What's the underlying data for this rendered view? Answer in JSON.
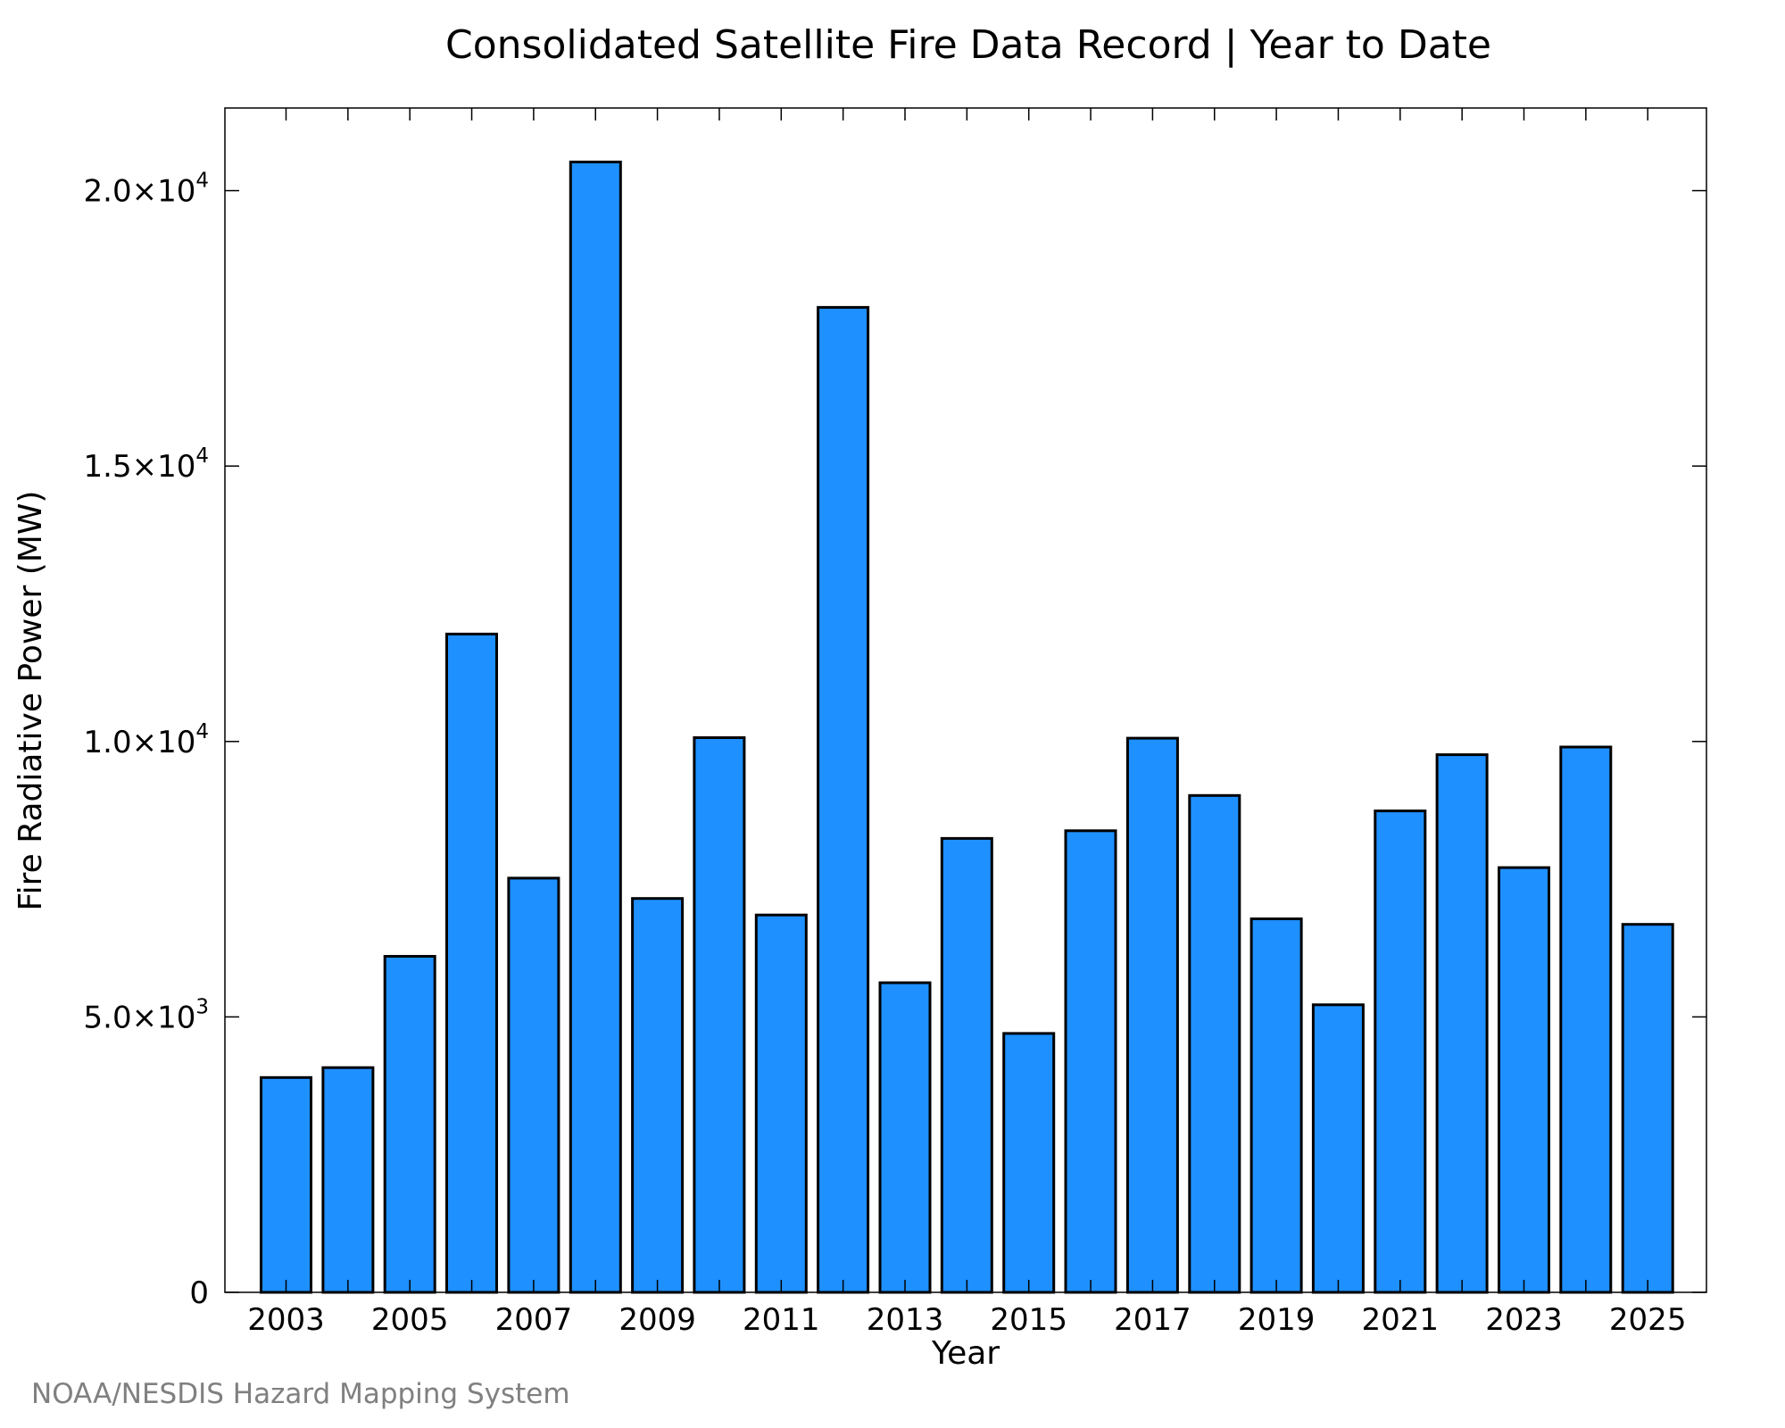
{
  "chart_data": {
    "type": "bar",
    "title": "Consolidated Satellite Fire Data Record | Year to Date",
    "xlabel": "Year",
    "ylabel": "Fire Radiative Power (MW)",
    "categories": [
      "2003",
      "2004",
      "2005",
      "2006",
      "2007",
      "2008",
      "2009",
      "2010",
      "2011",
      "2012",
      "2013",
      "2014",
      "2015",
      "2016",
      "2017",
      "2018",
      "2019",
      "2020",
      "2021",
      "2022",
      "2023",
      "2024",
      "2025"
    ],
    "values": [
      3900,
      4080,
      6100,
      11950,
      7520,
      20520,
      7150,
      10070,
      6850,
      17880,
      5620,
      8240,
      4700,
      8380,
      10060,
      9020,
      6780,
      5220,
      8740,
      9760,
      7710,
      9900,
      6680
    ],
    "x_tick_labels": [
      "2003",
      "2005",
      "2007",
      "2009",
      "2011",
      "2013",
      "2015",
      "2017",
      "2019",
      "2021",
      "2023",
      "2025"
    ],
    "y_ticks": [
      {
        "value": 0,
        "mantissa": "0",
        "exponent": ""
      },
      {
        "value": 5000,
        "mantissa": "5.0×10",
        "exponent": "3"
      },
      {
        "value": 10000,
        "mantissa": "1.0×10",
        "exponent": "4"
      },
      {
        "value": 15000,
        "mantissa": "1.5×10",
        "exponent": "4"
      },
      {
        "value": 20000,
        "mantissa": "2.0×10",
        "exponent": "4"
      }
    ],
    "ylim": [
      0,
      21500
    ],
    "grid": false,
    "legend": "none",
    "bar_color": "#1e90ff"
  },
  "credit": "NOAA/NESDIS Hazard Mapping System"
}
